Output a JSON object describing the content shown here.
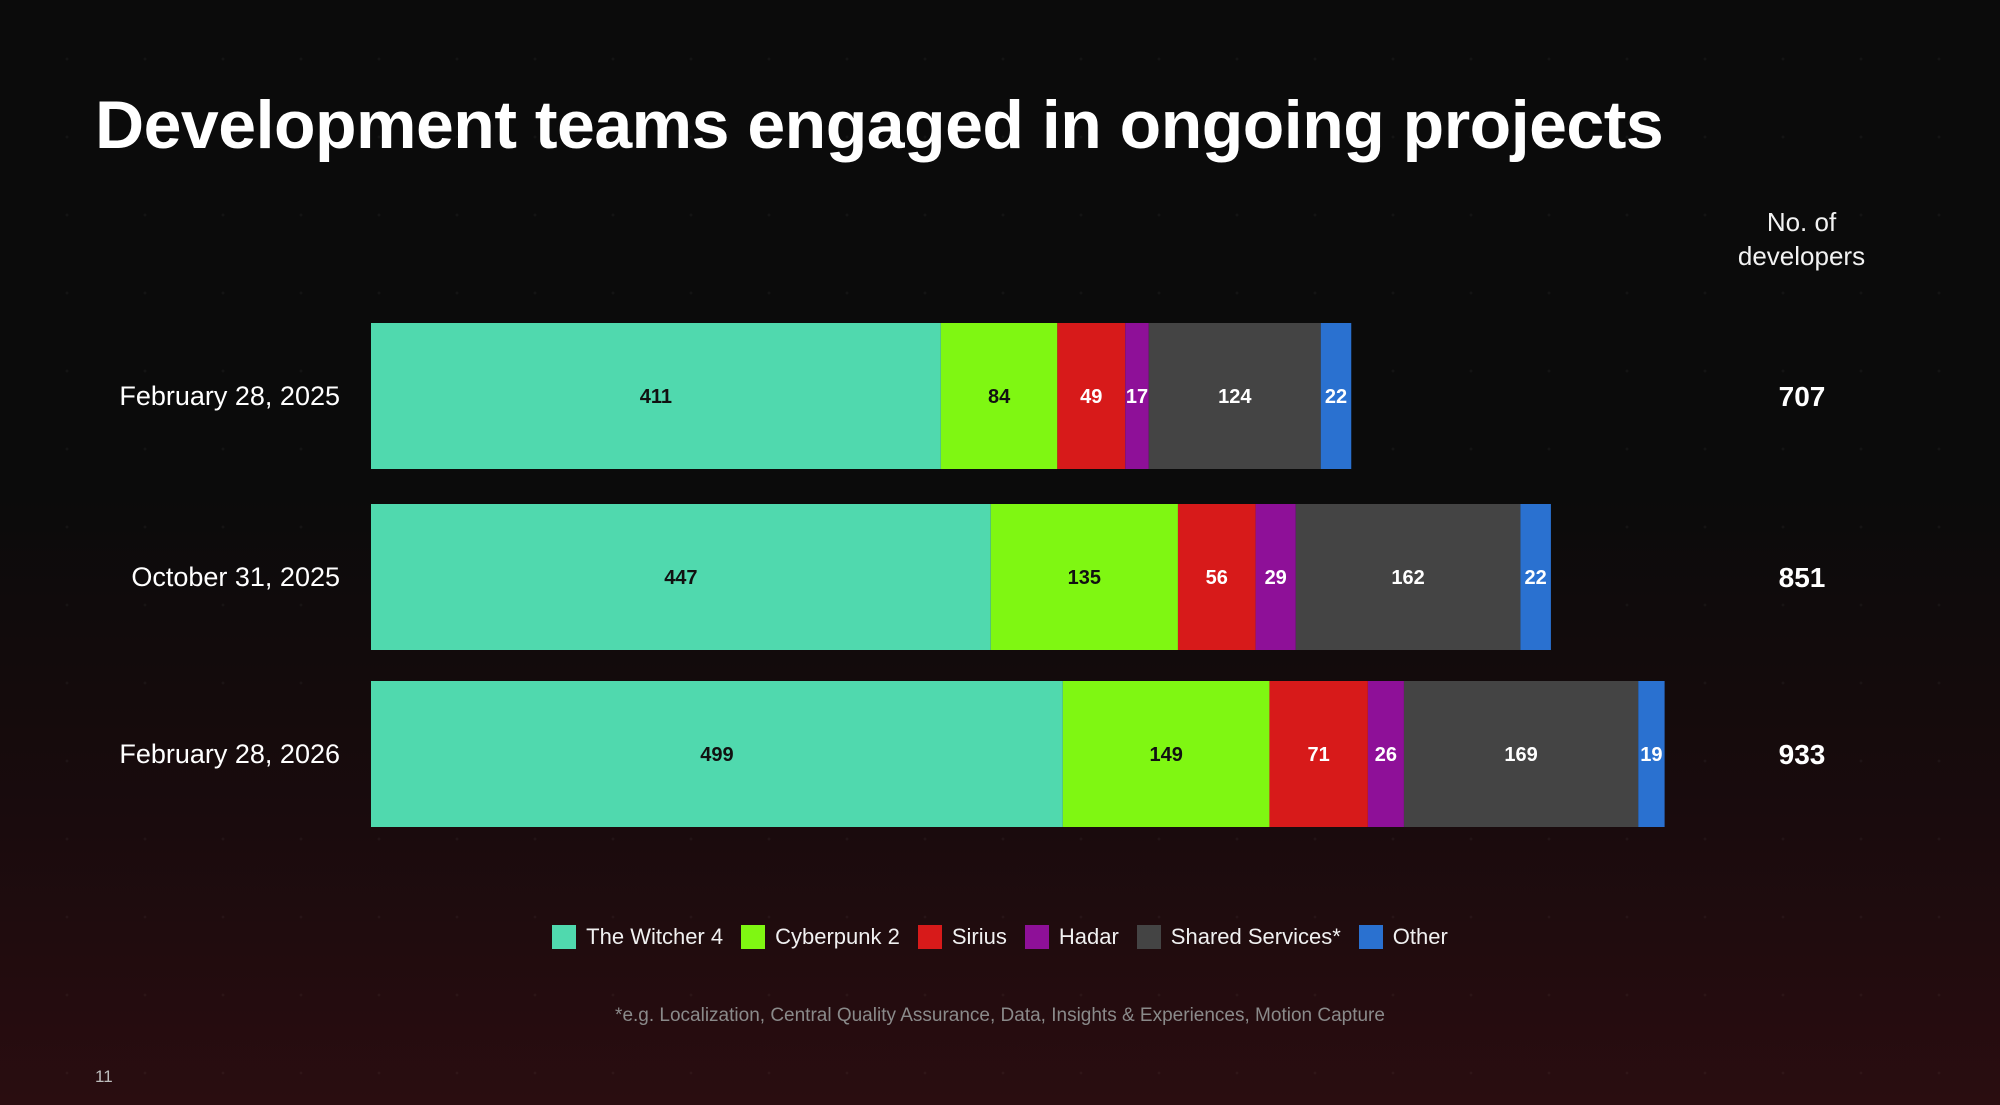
{
  "title": "Development teams engaged in ongoing projects",
  "total_header": [
    "No. of",
    "developers"
  ],
  "footnote": "*e.g. Localization, Central Quality Assurance, Data, Insights & Experiences, Motion Capture",
  "page_number": "11",
  "chart_data": {
    "type": "bar",
    "orientation": "horizontal",
    "stacked": true,
    "categories": [
      "February 28, 2025",
      "October 31, 2025",
      "February 28, 2026"
    ],
    "series": [
      {
        "name": "The Witcher 4",
        "color": "#50d9ae",
        "label_color": "#111111",
        "values": [
          411,
          447,
          499
        ]
      },
      {
        "name": "Cyberpunk 2",
        "color": "#7ff712",
        "label_color": "#111111",
        "values": [
          84,
          135,
          149
        ]
      },
      {
        "name": "Sirius",
        "color": "#d71a1a",
        "label_color": "#ffffff",
        "values": [
          49,
          56,
          71
        ]
      },
      {
        "name": "Hadar",
        "color": "#8e1098",
        "label_color": "#ffffff",
        "values": [
          17,
          29,
          26
        ]
      },
      {
        "name": "Shared Services*",
        "color": "#444444",
        "label_color": "#ffffff",
        "values": [
          124,
          162,
          169
        ]
      },
      {
        "name": "Other",
        "color": "#2a71d0",
        "label_color": "#ffffff",
        "values": [
          22,
          22,
          19
        ]
      }
    ],
    "totals": [
      "707",
      "851",
      "933"
    ],
    "legend_position": "bottom",
    "grid": false
  }
}
